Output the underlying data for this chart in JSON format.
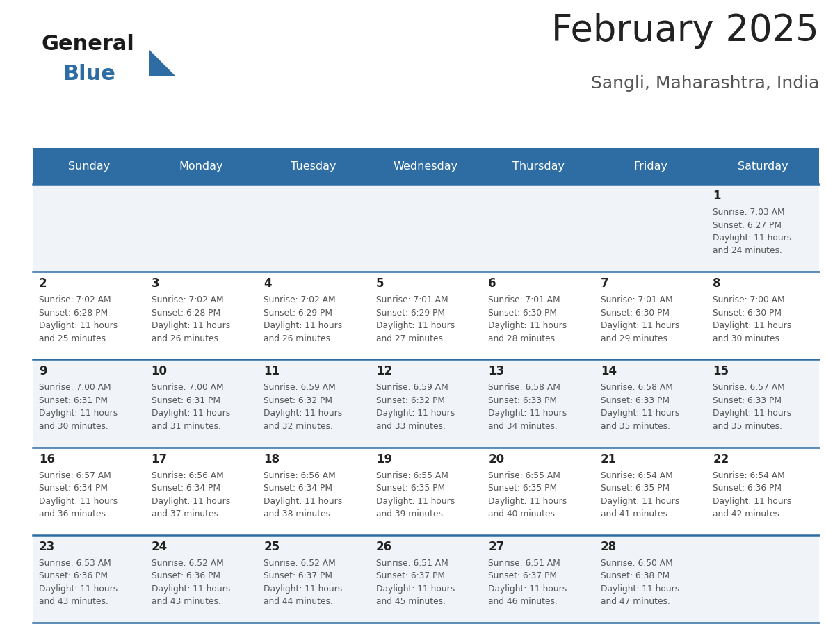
{
  "title": "February 2025",
  "subtitle": "Sangli, Maharashtra, India",
  "header_color": "#2d6da4",
  "header_text_color": "#ffffff",
  "day_names": [
    "Sunday",
    "Monday",
    "Tuesday",
    "Wednesday",
    "Thursday",
    "Friday",
    "Saturday"
  ],
  "title_color": "#222222",
  "subtitle_color": "#555555",
  "cell_bg_odd": "#f0f4f8",
  "cell_bg_even": "#ffffff",
  "cell_border_color": "#2d6da4",
  "day_num_color": "#222222",
  "info_text_color": "#555555",
  "logo_general_color": "#1a1a1a",
  "logo_blue_color": "#2d6da4",
  "logo_triangle_color": "#2d6da4",
  "calendar_data": [
    [
      null,
      null,
      null,
      null,
      null,
      null,
      {
        "day": 1,
        "sunrise": "7:03 AM",
        "sunset": "6:27 PM",
        "daylight": "11 hours and 24 minutes."
      }
    ],
    [
      {
        "day": 2,
        "sunrise": "7:02 AM",
        "sunset": "6:28 PM",
        "daylight": "11 hours and 25 minutes."
      },
      {
        "day": 3,
        "sunrise": "7:02 AM",
        "sunset": "6:28 PM",
        "daylight": "11 hours and 26 minutes."
      },
      {
        "day": 4,
        "sunrise": "7:02 AM",
        "sunset": "6:29 PM",
        "daylight": "11 hours and 26 minutes."
      },
      {
        "day": 5,
        "sunrise": "7:01 AM",
        "sunset": "6:29 PM",
        "daylight": "11 hours and 27 minutes."
      },
      {
        "day": 6,
        "sunrise": "7:01 AM",
        "sunset": "6:30 PM",
        "daylight": "11 hours and 28 minutes."
      },
      {
        "day": 7,
        "sunrise": "7:01 AM",
        "sunset": "6:30 PM",
        "daylight": "11 hours and 29 minutes."
      },
      {
        "day": 8,
        "sunrise": "7:00 AM",
        "sunset": "6:30 PM",
        "daylight": "11 hours and 30 minutes."
      }
    ],
    [
      {
        "day": 9,
        "sunrise": "7:00 AM",
        "sunset": "6:31 PM",
        "daylight": "11 hours and 30 minutes."
      },
      {
        "day": 10,
        "sunrise": "7:00 AM",
        "sunset": "6:31 PM",
        "daylight": "11 hours and 31 minutes."
      },
      {
        "day": 11,
        "sunrise": "6:59 AM",
        "sunset": "6:32 PM",
        "daylight": "11 hours and 32 minutes."
      },
      {
        "day": 12,
        "sunrise": "6:59 AM",
        "sunset": "6:32 PM",
        "daylight": "11 hours and 33 minutes."
      },
      {
        "day": 13,
        "sunrise": "6:58 AM",
        "sunset": "6:33 PM",
        "daylight": "11 hours and 34 minutes."
      },
      {
        "day": 14,
        "sunrise": "6:58 AM",
        "sunset": "6:33 PM",
        "daylight": "11 hours and 35 minutes."
      },
      {
        "day": 15,
        "sunrise": "6:57 AM",
        "sunset": "6:33 PM",
        "daylight": "11 hours and 35 minutes."
      }
    ],
    [
      {
        "day": 16,
        "sunrise": "6:57 AM",
        "sunset": "6:34 PM",
        "daylight": "11 hours and 36 minutes."
      },
      {
        "day": 17,
        "sunrise": "6:56 AM",
        "sunset": "6:34 PM",
        "daylight": "11 hours and 37 minutes."
      },
      {
        "day": 18,
        "sunrise": "6:56 AM",
        "sunset": "6:34 PM",
        "daylight": "11 hours and 38 minutes."
      },
      {
        "day": 19,
        "sunrise": "6:55 AM",
        "sunset": "6:35 PM",
        "daylight": "11 hours and 39 minutes."
      },
      {
        "day": 20,
        "sunrise": "6:55 AM",
        "sunset": "6:35 PM",
        "daylight": "11 hours and 40 minutes."
      },
      {
        "day": 21,
        "sunrise": "6:54 AM",
        "sunset": "6:35 PM",
        "daylight": "11 hours and 41 minutes."
      },
      {
        "day": 22,
        "sunrise": "6:54 AM",
        "sunset": "6:36 PM",
        "daylight": "11 hours and 42 minutes."
      }
    ],
    [
      {
        "day": 23,
        "sunrise": "6:53 AM",
        "sunset": "6:36 PM",
        "daylight": "11 hours and 43 minutes."
      },
      {
        "day": 24,
        "sunrise": "6:52 AM",
        "sunset": "6:36 PM",
        "daylight": "11 hours and 43 minutes."
      },
      {
        "day": 25,
        "sunrise": "6:52 AM",
        "sunset": "6:37 PM",
        "daylight": "11 hours and 44 minutes."
      },
      {
        "day": 26,
        "sunrise": "6:51 AM",
        "sunset": "6:37 PM",
        "daylight": "11 hours and 45 minutes."
      },
      {
        "day": 27,
        "sunrise": "6:51 AM",
        "sunset": "6:37 PM",
        "daylight": "11 hours and 46 minutes."
      },
      {
        "day": 28,
        "sunrise": "6:50 AM",
        "sunset": "6:38 PM",
        "daylight": "11 hours and 47 minutes."
      },
      null
    ]
  ]
}
